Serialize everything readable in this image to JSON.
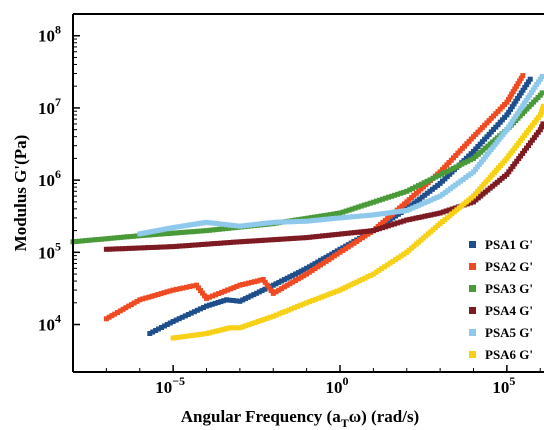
{
  "chart_data": {
    "type": "scatter",
    "xlabel_main": "Angular Frequency (a",
    "xlabel_sub": "T",
    "xlabel_rest": "ω) (rad/s)",
    "ylabel": "Modulus G'(Pa)",
    "x_scale": "log",
    "y_scale": "log",
    "xlim": [
      1e-08,
      100000000.0
    ],
    "ylim": [
      2200.0,
      200000000.0
    ],
    "x_ticks": [
      {
        "value": 1e-05,
        "base": "10",
        "exp": "−5"
      },
      {
        "value": 1,
        "base": "10",
        "exp": "0"
      },
      {
        "value": 100000.0,
        "base": "10",
        "exp": "5"
      }
    ],
    "y_ticks": [
      {
        "value": 10000.0,
        "base": "10",
        "exp": "4"
      },
      {
        "value": 100000.0,
        "base": "10",
        "exp": "5"
      },
      {
        "value": 1000000.0,
        "base": "10",
        "exp": "6"
      },
      {
        "value": 10000000.0,
        "base": "10",
        "exp": "7"
      },
      {
        "value": 100000000.0,
        "base": "10",
        "exp": "8"
      }
    ],
    "grid": false,
    "legend_position": "right",
    "series": [
      {
        "name": "PSA1 G'",
        "color": "#1f4e8c",
        "points": [
          [
            2e-06,
            7500.0
          ],
          [
            1e-05,
            11000.0
          ],
          [
            0.0001,
            18000.0
          ],
          [
            0.0004,
            22000.0
          ],
          [
            0.001,
            21000.0
          ],
          [
            0.01,
            35000.0
          ],
          [
            0.1,
            60000.0
          ],
          [
            1,
            110000.0
          ],
          [
            10,
            200000.0
          ],
          [
            100,
            400000.0
          ],
          [
            1000.0,
            900000.0
          ],
          [
            10000.0,
            2500000.0
          ],
          [
            100000.0,
            8000000.0
          ],
          [
            500000.0,
            25000000.0
          ]
        ]
      },
      {
        "name": "PSA2 G'",
        "color": "#f04a23",
        "points": [
          [
            1e-07,
            12000.0
          ],
          [
            1e-06,
            22000.0
          ],
          [
            1e-05,
            30000.0
          ],
          [
            5e-05,
            35000.0
          ],
          [
            0.0001,
            23000.0
          ],
          [
            0.001,
            35000.0
          ],
          [
            0.005,
            42000.0
          ],
          [
            0.01,
            27000.0
          ],
          [
            0.1,
            50000.0
          ],
          [
            1,
            100000.0
          ],
          [
            10,
            200000.0
          ],
          [
            100,
            500000.0
          ],
          [
            1000.0,
            1300000.0
          ],
          [
            10000.0,
            4000000.0
          ],
          [
            100000.0,
            12000000.0
          ],
          [
            300000.0,
            28000000.0
          ]
        ]
      },
      {
        "name": "PSA3 G'",
        "color": "#4a9a3a",
        "points": [
          [
            1e-08,
            140000.0
          ],
          [
            1e-06,
            170000.0
          ],
          [
            0.0001,
            200000.0
          ],
          [
            0.01,
            250000.0
          ],
          [
            1,
            350000.0
          ],
          [
            100,
            700000.0
          ],
          [
            10000.0,
            2000000.0
          ],
          [
            100000.0,
            5000000.0
          ],
          [
            1000000.0,
            15000000.0
          ],
          [
            3000000.0,
            27000000.0
          ]
        ]
      },
      {
        "name": "PSA4 G'",
        "color": "#7d1a22",
        "points": [
          [
            1e-07,
            110000.0
          ],
          [
            1e-05,
            120000.0
          ],
          [
            0.001,
            140000.0
          ],
          [
            0.1,
            160000.0
          ],
          [
            10,
            200000.0
          ],
          [
            100,
            280000.0
          ],
          [
            1000.0,
            350000.0
          ],
          [
            10000.0,
            500000.0
          ],
          [
            100000.0,
            1200000.0
          ],
          [
            1000000.0,
            5000000.0
          ],
          [
            3000000.0,
            15000000.0
          ]
        ]
      },
      {
        "name": "PSA5 G'",
        "color": "#8ec8ea",
        "points": [
          [
            1e-06,
            180000.0
          ],
          [
            1e-05,
            220000.0
          ],
          [
            0.0001,
            260000.0
          ],
          [
            0.001,
            230000.0
          ],
          [
            0.01,
            260000.0
          ],
          [
            0.1,
            270000.0
          ],
          [
            1,
            300000.0
          ],
          [
            10,
            330000.0
          ],
          [
            100,
            380000.0
          ],
          [
            1000.0,
            600000.0
          ],
          [
            10000.0,
            1300000.0
          ],
          [
            100000.0,
            5000000.0
          ],
          [
            1000000.0,
            25000000.0
          ],
          [
            3000000.0,
            50000000.0
          ]
        ]
      },
      {
        "name": "PSA6 G'",
        "color": "#f7d117",
        "points": [
          [
            1e-05,
            6500.0
          ],
          [
            0.0001,
            7500.0
          ],
          [
            0.0005,
            9000.0
          ],
          [
            0.001,
            9000.0
          ],
          [
            0.01,
            13000.0
          ],
          [
            0.1,
            20000.0
          ],
          [
            1,
            30000.0
          ],
          [
            10,
            50000.0
          ],
          [
            100,
            100000.0
          ],
          [
            1000.0,
            250000.0
          ],
          [
            10000.0,
            600000.0
          ],
          [
            100000.0,
            2000000.0
          ],
          [
            1000000.0,
            8000000.0
          ],
          [
            2000000.0,
            20000000.0
          ]
        ]
      }
    ]
  }
}
